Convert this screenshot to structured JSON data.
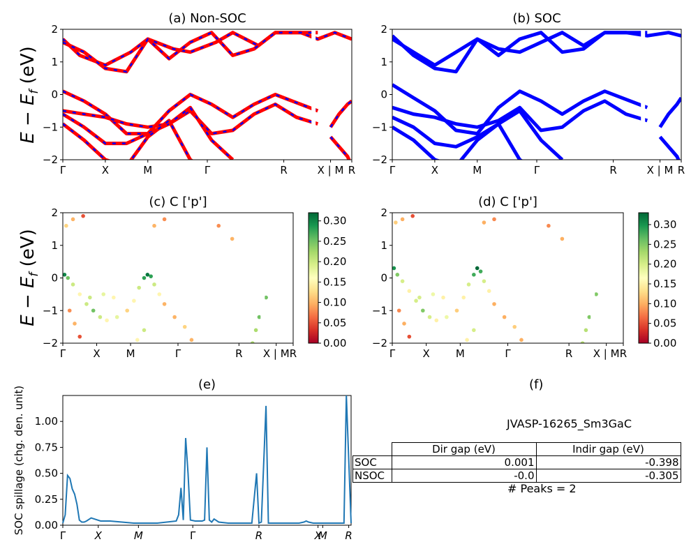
{
  "figure_id": "JVASP-16265_Sm3GaC",
  "peaks_text": "# Peaks = 2",
  "ylabel_band": "E − E",
  "ylabel_sub": "f",
  "ylabel_unit": " (eV)",
  "chart_data": [
    {
      "panel": "a",
      "type": "line",
      "title": "(a) Non-SOC",
      "ylim": [
        -2,
        2
      ],
      "yticks": [
        "2",
        "1",
        "0",
        "−1",
        "−2"
      ],
      "xticks": [
        "Γ",
        "X",
        "M",
        "Γ",
        "R",
        "X | M",
        "R"
      ],
      "colors": {
        "bands": "#ff0000",
        "overlay": "#0000ff"
      },
      "series": [
        {
          "x": [
            0,
            0.4,
            1,
            1.6,
            2,
            2.6,
            3,
            3.6,
            4,
            4.6,
            5,
            5.6,
            6,
            6.4,
            6.8
          ],
          "y": [
            1.7,
            1.2,
            0.9,
            1.3,
            1.7,
            1.4,
            1.3,
            1.6,
            1.9,
            1.5,
            1.9,
            1.9,
            1.7,
            1.9,
            1.7
          ]
        },
        {
          "x": [
            0,
            0.5,
            1,
            1.5,
            2,
            2.5,
            3,
            3.5,
            4,
            4.5,
            5,
            5.5,
            6
          ],
          "y": [
            1.6,
            1.3,
            0.8,
            0.7,
            1.7,
            1.1,
            1.6,
            1.9,
            1.2,
            1.4,
            1.9,
            1.9,
            1.9
          ]
        },
        {
          "x": [
            0,
            0.5,
            1,
            1.5,
            2,
            2.5,
            3,
            3.5,
            4,
            4.5,
            5,
            5.4,
            5.8,
            6
          ],
          "y": [
            0.1,
            -0.2,
            -0.6,
            -1.2,
            -1.2,
            -0.5,
            0.0,
            -0.3,
            -0.7,
            -0.3,
            0.0,
            -0.2,
            -0.4,
            -0.5
          ]
        },
        {
          "x": [
            0,
            0.5,
            1,
            1.5,
            2,
            2.5,
            3,
            3.5,
            4,
            4.5,
            5,
            5.5,
            6
          ],
          "y": [
            -0.5,
            -0.6,
            -0.7,
            -0.9,
            -1.0,
            -0.9,
            -0.5,
            -1.2,
            -1.1,
            -0.6,
            -0.3,
            -0.7,
            -0.9
          ]
        },
        {
          "x": [
            0,
            0.5,
            1,
            1.5,
            2,
            2.5,
            3,
            3.5,
            4
          ],
          "y": [
            -0.6,
            -1.0,
            -1.5,
            -1.5,
            -1.2,
            -0.9,
            -0.4,
            -1.4,
            -2.0
          ]
        },
        {
          "x": [
            0,
            0.5,
            1,
            1.5,
            2,
            2.5,
            3,
            3.5
          ],
          "y": [
            -0.9,
            -1.4,
            -2.0,
            -2.2,
            -1.3,
            -0.8,
            -2.0,
            -2.4
          ]
        },
        {
          "x": [
            6.3,
            6.5,
            6.7,
            6.8
          ],
          "y": [
            -1.0,
            -0.6,
            -0.3,
            -0.2
          ]
        },
        {
          "x": [
            6.3,
            6.5,
            6.7,
            6.8
          ],
          "y": [
            -1.3,
            -1.6,
            -1.9,
            -2.2
          ]
        }
      ]
    },
    {
      "panel": "b",
      "type": "line",
      "title": "(b) SOC",
      "ylim": [
        -2,
        2
      ],
      "yticks": [
        "2",
        "1",
        "0",
        "−1",
        "−2"
      ],
      "xticks": [
        "Γ",
        "X",
        "M",
        "Γ",
        "R",
        "X | M",
        "R"
      ],
      "colors": {
        "bands": "#0000ff"
      },
      "series": [
        {
          "x": [
            0,
            0.5,
            1,
            1.5,
            2,
            2.5,
            3,
            3.5,
            4,
            4.5,
            5,
            5.5,
            6,
            6.5,
            6.8
          ],
          "y": [
            1.7,
            1.3,
            0.9,
            1.3,
            1.7,
            1.4,
            1.3,
            1.6,
            1.9,
            1.5,
            1.9,
            1.9,
            1.8,
            1.9,
            1.8
          ]
        },
        {
          "x": [
            0,
            0.5,
            1,
            1.5,
            2,
            2.5,
            3,
            3.5,
            4,
            4.5,
            5,
            5.5,
            6
          ],
          "y": [
            1.8,
            1.2,
            0.8,
            0.7,
            1.7,
            1.2,
            1.7,
            1.9,
            1.3,
            1.4,
            1.9,
            1.9,
            1.9
          ]
        },
        {
          "x": [
            0,
            0.5,
            1,
            1.5,
            2,
            2.5,
            3,
            3.5,
            4,
            4.5,
            5,
            5.4,
            5.8,
            6
          ],
          "y": [
            0.3,
            -0.1,
            -0.5,
            -1.1,
            -1.2,
            -0.4,
            0.1,
            -0.2,
            -0.6,
            -0.2,
            0.1,
            -0.1,
            -0.3,
            -0.4
          ]
        },
        {
          "x": [
            0,
            0.5,
            1,
            1.5,
            2,
            2.5,
            3,
            3.5,
            4,
            4.5,
            5,
            5.5,
            6
          ],
          "y": [
            -0.4,
            -0.6,
            -0.7,
            -0.9,
            -1.0,
            -0.8,
            -0.4,
            -1.1,
            -1.0,
            -0.5,
            -0.2,
            -0.6,
            -0.8
          ]
        },
        {
          "x": [
            0,
            0.5,
            1,
            1.5,
            2,
            2.5,
            3,
            3.5,
            4
          ],
          "y": [
            -0.7,
            -1.0,
            -1.5,
            -1.6,
            -1.3,
            -0.9,
            -0.5,
            -1.4,
            -2.0
          ]
        },
        {
          "x": [
            0,
            0.5,
            1,
            1.5,
            2,
            2.5,
            3,
            3.5
          ],
          "y": [
            -1.0,
            -1.4,
            -2.0,
            -2.2,
            -1.4,
            -0.9,
            -2.0,
            -2.4
          ]
        },
        {
          "x": [
            6.3,
            6.5,
            6.7,
            6.8
          ],
          "y": [
            -1.0,
            -0.6,
            -0.3,
            -0.1
          ]
        },
        {
          "x": [
            6.3,
            6.5,
            6.7,
            6.8
          ],
          "y": [
            -1.3,
            -1.6,
            -1.9,
            -2.2
          ]
        }
      ]
    },
    {
      "panel": "c",
      "type": "scatter",
      "title": "(c)  C ['p']",
      "ylim": [
        -2,
        2
      ],
      "yticks": [
        "2",
        "1",
        "0",
        "−1",
        "−2"
      ],
      "xticks": [
        "Γ",
        "X",
        "M",
        "Γ",
        "R",
        "X | M",
        "R"
      ],
      "colorbar": {
        "ticks": [
          "0.30",
          "0.25",
          "0.20",
          "0.15",
          "0.10",
          "0.05",
          "0.00"
        ],
        "vmin": 0.0,
        "vmax": 0.32
      },
      "points": [
        [
          0.05,
          0.1,
          0.3
        ],
        [
          0.15,
          0.0,
          0.25
        ],
        [
          0.3,
          -0.2,
          0.2
        ],
        [
          0.5,
          -0.5,
          0.15
        ],
        [
          0.7,
          -0.8,
          0.2
        ],
        [
          0.9,
          -1.0,
          0.25
        ],
        [
          1.1,
          -1.2,
          0.2
        ],
        [
          1.3,
          -1.3,
          0.15
        ],
        [
          1.6,
          -1.2,
          0.18
        ],
        [
          1.9,
          -1.0,
          0.12
        ],
        [
          2.1,
          -0.7,
          0.15
        ],
        [
          2.25,
          -0.3,
          0.2
        ],
        [
          2.4,
          0.0,
          0.28
        ],
        [
          2.5,
          0.1,
          0.31
        ],
        [
          2.6,
          0.05,
          0.28
        ],
        [
          2.7,
          -0.2,
          0.2
        ],
        [
          2.85,
          -0.5,
          0.15
        ],
        [
          3.0,
          -0.8,
          0.1
        ],
        [
          3.3,
          -1.2,
          0.1
        ],
        [
          3.6,
          -1.5,
          0.12
        ],
        [
          3.8,
          -1.9,
          0.1
        ],
        [
          0.2,
          -1.0,
          0.08
        ],
        [
          0.35,
          -1.4,
          0.1
        ],
        [
          0.5,
          -1.8,
          0.05
        ],
        [
          5.7,
          -1.6,
          0.22
        ],
        [
          5.8,
          -1.2,
          0.25
        ],
        [
          5.9,
          -0.8,
          0.2
        ],
        [
          6.0,
          -0.6,
          0.25
        ],
        [
          5.6,
          -2.0,
          0.22
        ],
        [
          0.1,
          1.6,
          0.12
        ],
        [
          0.3,
          1.8,
          0.1
        ],
        [
          0.6,
          1.9,
          0.05
        ],
        [
          2.7,
          1.6,
          0.1
        ],
        [
          3.0,
          1.8,
          0.08
        ],
        [
          4.6,
          1.6,
          0.08
        ],
        [
          5.0,
          1.2,
          0.1
        ],
        [
          1.2,
          -0.5,
          0.18
        ],
        [
          1.5,
          -0.6,
          0.15
        ],
        [
          0.8,
          -0.6,
          0.2
        ],
        [
          2.4,
          -1.6,
          0.2
        ],
        [
          2.2,
          -1.9,
          0.15
        ]
      ]
    },
    {
      "panel": "d",
      "type": "scatter",
      "title": "(d) C ['p']",
      "ylim": [
        -2,
        2
      ],
      "yticks": [
        "2",
        "1",
        "0",
        "−1",
        "−2"
      ],
      "xticks": [
        "Γ",
        "X",
        "M",
        "Γ",
        "R",
        "X | M",
        "R"
      ],
      "colorbar": {
        "ticks": [
          "0.30",
          "0.25",
          "0.20",
          "0.15",
          "0.10",
          "0.05",
          "0.00"
        ],
        "vmin": 0.0,
        "vmax": 0.33
      },
      "points": [
        [
          0.05,
          0.3,
          0.3
        ],
        [
          0.15,
          0.1,
          0.25
        ],
        [
          0.3,
          -0.1,
          0.2
        ],
        [
          0.5,
          -0.4,
          0.15
        ],
        [
          0.7,
          -0.7,
          0.2
        ],
        [
          0.9,
          -1.0,
          0.25
        ],
        [
          1.1,
          -1.2,
          0.2
        ],
        [
          1.3,
          -1.3,
          0.15
        ],
        [
          1.6,
          -1.2,
          0.18
        ],
        [
          1.9,
          -1.0,
          0.12
        ],
        [
          2.1,
          -0.6,
          0.15
        ],
        [
          2.25,
          -0.2,
          0.2
        ],
        [
          2.4,
          0.1,
          0.28
        ],
        [
          2.5,
          0.3,
          0.33
        ],
        [
          2.6,
          0.2,
          0.28
        ],
        [
          2.7,
          -0.1,
          0.2
        ],
        [
          2.85,
          -0.4,
          0.15
        ],
        [
          3.0,
          -0.8,
          0.1
        ],
        [
          3.3,
          -1.2,
          0.1
        ],
        [
          3.6,
          -1.5,
          0.12
        ],
        [
          3.8,
          -1.9,
          0.1
        ],
        [
          0.2,
          -1.0,
          0.08
        ],
        [
          0.35,
          -1.4,
          0.1
        ],
        [
          0.5,
          -1.8,
          0.05
        ],
        [
          5.7,
          -1.6,
          0.22
        ],
        [
          5.8,
          -1.2,
          0.25
        ],
        [
          5.9,
          -0.7,
          0.2
        ],
        [
          6.0,
          -0.5,
          0.25
        ],
        [
          5.6,
          -2.0,
          0.22
        ],
        [
          0.1,
          1.7,
          0.12
        ],
        [
          0.3,
          1.8,
          0.1
        ],
        [
          0.6,
          1.9,
          0.05
        ],
        [
          2.7,
          1.7,
          0.1
        ],
        [
          3.0,
          1.8,
          0.08
        ],
        [
          4.6,
          1.6,
          0.08
        ],
        [
          5.0,
          1.2,
          0.1
        ],
        [
          1.2,
          -0.5,
          0.18
        ],
        [
          1.5,
          -0.6,
          0.15
        ],
        [
          0.8,
          -0.6,
          0.2
        ],
        [
          2.4,
          -1.6,
          0.2
        ],
        [
          2.2,
          -1.9,
          0.15
        ]
      ]
    },
    {
      "panel": "e",
      "type": "line",
      "title": "(e)",
      "ylabel": "SOC spillage (chg. den. unit)",
      "ylim": [
        0,
        1.25
      ],
      "yticks": [
        "1.00",
        "0.75",
        "0.50",
        "0.25",
        "0.00"
      ],
      "xticks": [
        "Γ",
        "X",
        "M",
        "Γ",
        "R",
        "X",
        "M",
        "R"
      ],
      "color": "#1f77b4",
      "series": [
        {
          "x": [
            0,
            0.05,
            0.1,
            0.15,
            0.2,
            0.25,
            0.3,
            0.35,
            0.4,
            0.45,
            0.5,
            0.6,
            0.8,
            1.0,
            1.5,
            2.0,
            2.4,
            2.45,
            2.5,
            2.55,
            2.6,
            2.65,
            2.7,
            2.8,
            2.95,
            3.0,
            3.05,
            3.1,
            3.15,
            3.2,
            3.3,
            3.5,
            3.8,
            4.0,
            4.1,
            4.15,
            4.2,
            4.3,
            4.35,
            4.4,
            4.5,
            4.8,
            5.0,
            5.1,
            5.15,
            5.2,
            5.3,
            5.5,
            5.9,
            5.95,
            6.0,
            6.1
          ],
          "y": [
            0.02,
            0.1,
            0.48,
            0.45,
            0.35,
            0.3,
            0.2,
            0.05,
            0.03,
            0.03,
            0.04,
            0.07,
            0.04,
            0.04,
            0.02,
            0.02,
            0.04,
            0.1,
            0.36,
            0.05,
            0.84,
            0.5,
            0.05,
            0.04,
            0.04,
            0.05,
            0.75,
            0.05,
            0.03,
            0.06,
            0.03,
            0.02,
            0.02,
            0.02,
            0.5,
            0.02,
            0.03,
            1.15,
            0.02,
            0.02,
            0.02,
            0.02,
            0.02,
            0.03,
            0.04,
            0.03,
            0.02,
            0.02,
            0.02,
            0.02,
            1.25,
            0.02
          ]
        }
      ]
    }
  ],
  "table": {
    "headers": [
      "",
      "Dir gap (eV)",
      "Indir gap (eV)"
    ],
    "rows": [
      [
        "SOC",
        "0.001",
        "-0.398"
      ],
      [
        "NSOC",
        "-0.0",
        "-0.305"
      ]
    ]
  },
  "panel_f_title": "(f)"
}
